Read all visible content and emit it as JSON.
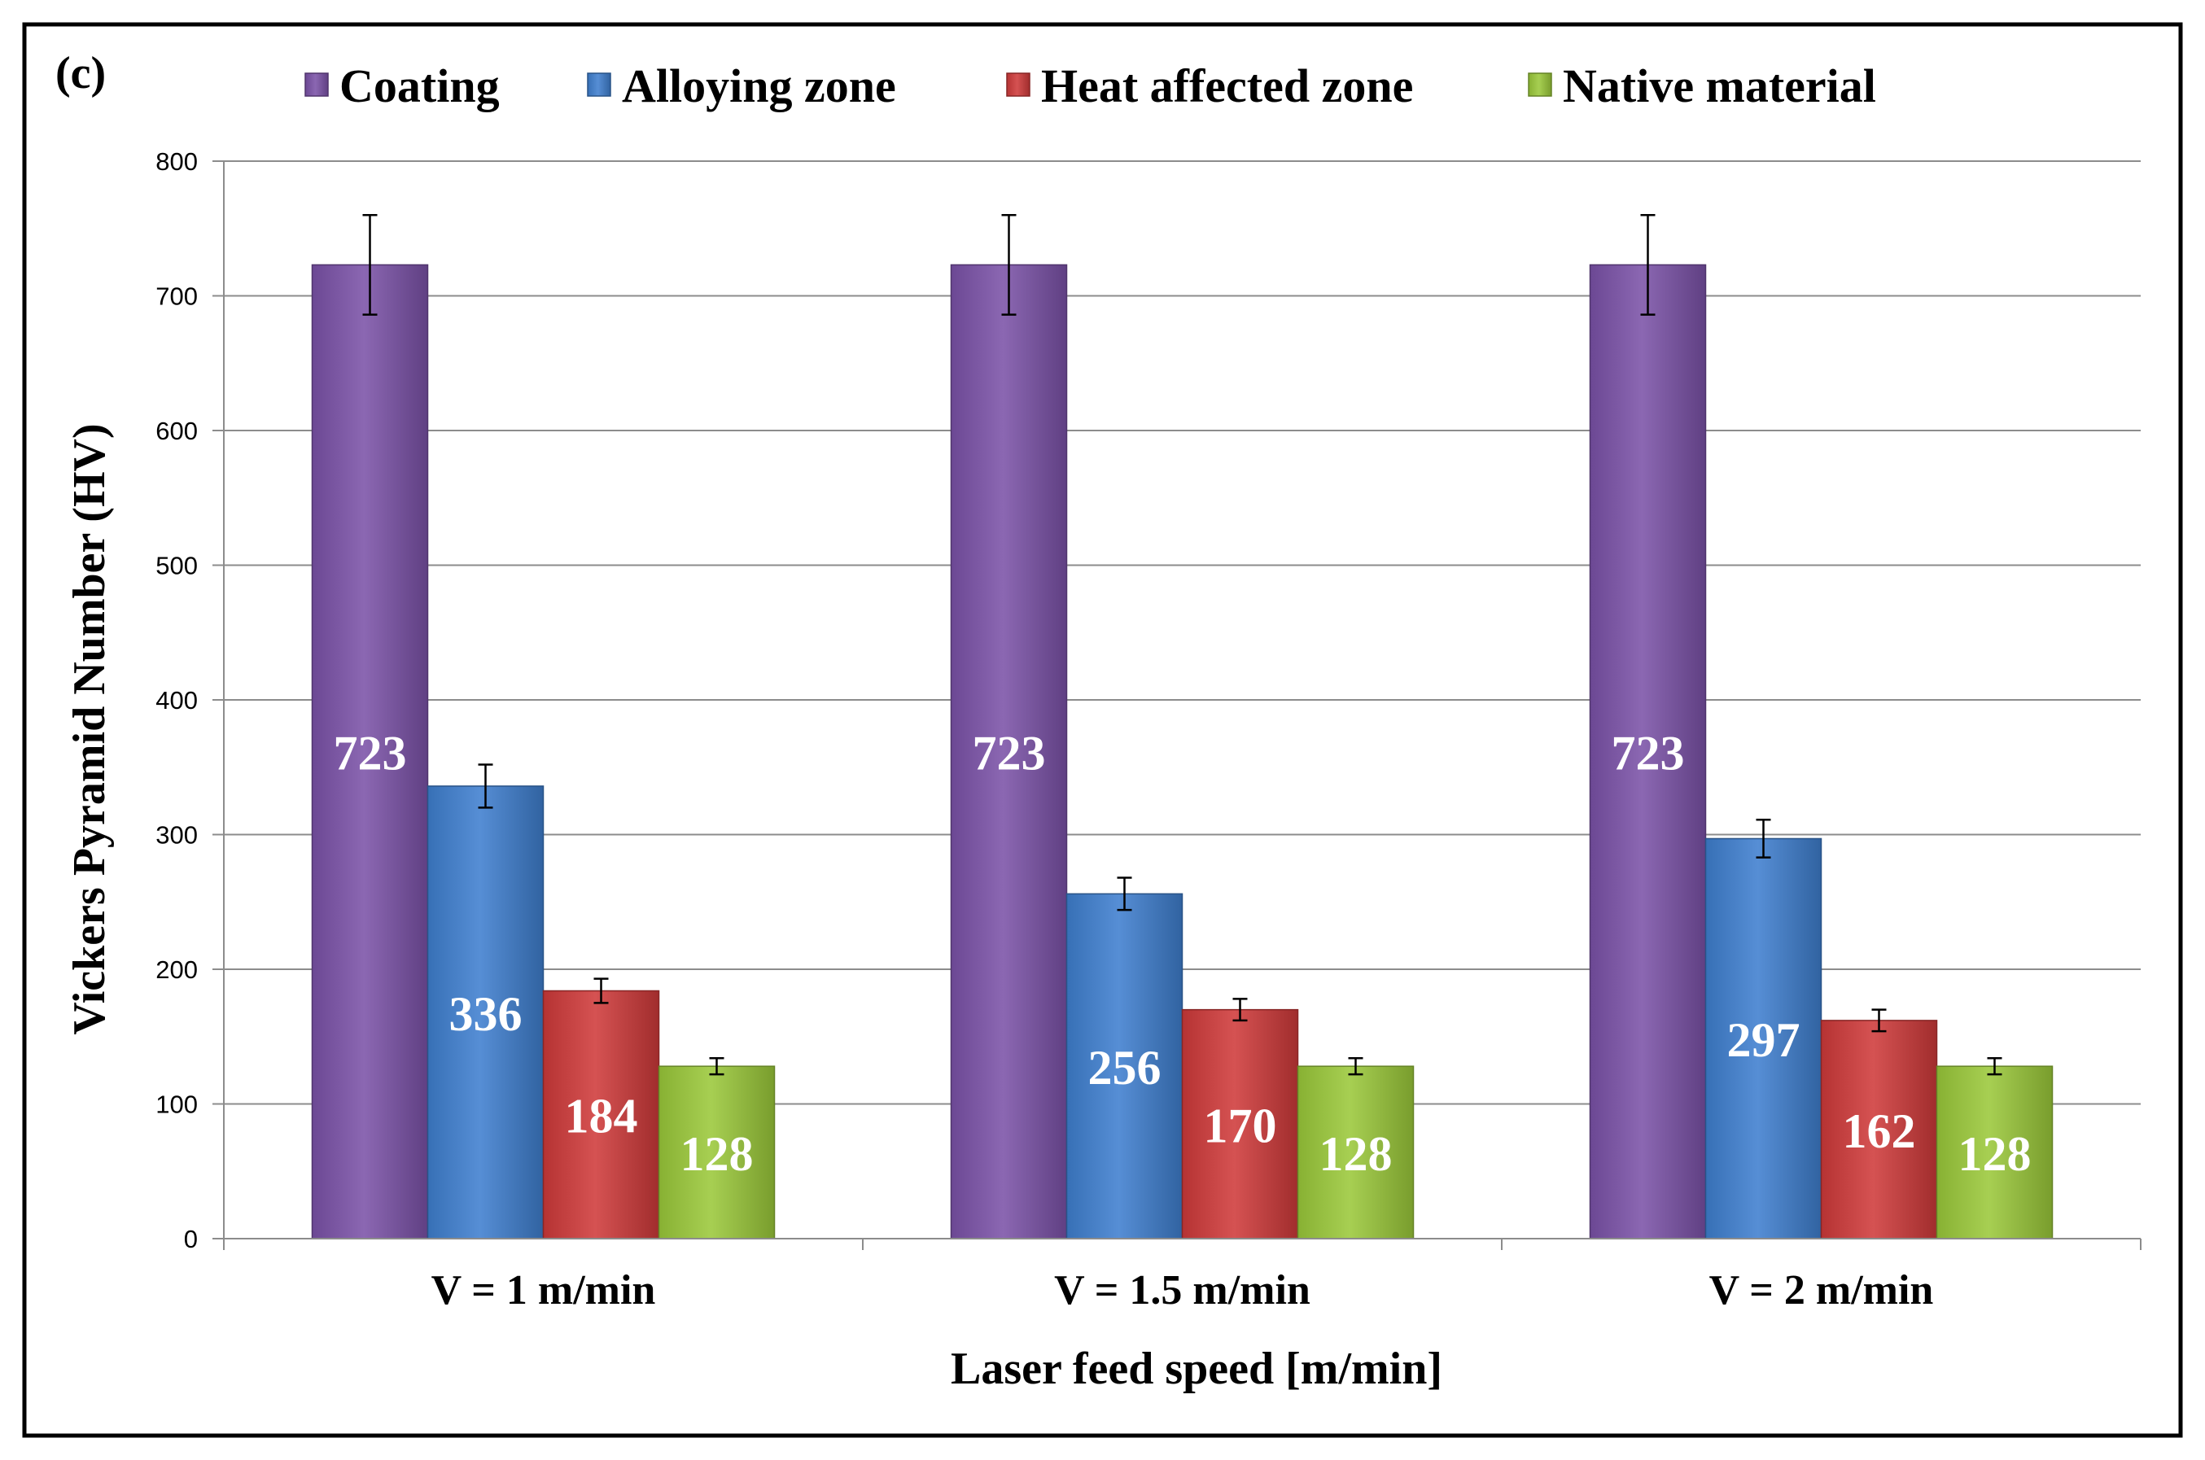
{
  "chart_data": {
    "type": "bar",
    "panel_label": "(c)",
    "title": "",
    "xlabel": "Laser feed speed [m/min]",
    "ylabel": "Vickers Pyramid Number (HV)",
    "ylim": [
      0,
      800
    ],
    "yticks": [
      0,
      100,
      200,
      300,
      400,
      500,
      600,
      700,
      800
    ],
    "grid": "horizontal",
    "legend_position": "top",
    "categories": [
      "V = 1 m/min",
      "V = 1.5 m/min",
      "V = 2 m/min"
    ],
    "series": [
      {
        "name": "Coating",
        "color": "#7b52a8",
        "values": [
          723,
          723,
          723
        ],
        "errors": [
          37,
          37,
          37
        ],
        "labels": [
          "723",
          "723",
          "723"
        ]
      },
      {
        "name": "Alloying zone",
        "color": "#3f7fcf",
        "values": [
          336,
          256,
          297
        ],
        "errors": [
          16,
          12,
          14
        ],
        "labels": [
          "336",
          "256",
          "297"
        ]
      },
      {
        "name": "Heat affected zone",
        "color": "#cf3a3a",
        "values": [
          184,
          170,
          162
        ],
        "errors": [
          9,
          8,
          8
        ],
        "labels": [
          "184",
          "170",
          "162"
        ]
      },
      {
        "name": "Native material",
        "color": "#9bc93a",
        "values": [
          128,
          128,
          128
        ],
        "errors": [
          6,
          6,
          6
        ],
        "labels": [
          "128",
          "128",
          "128"
        ]
      }
    ]
  }
}
